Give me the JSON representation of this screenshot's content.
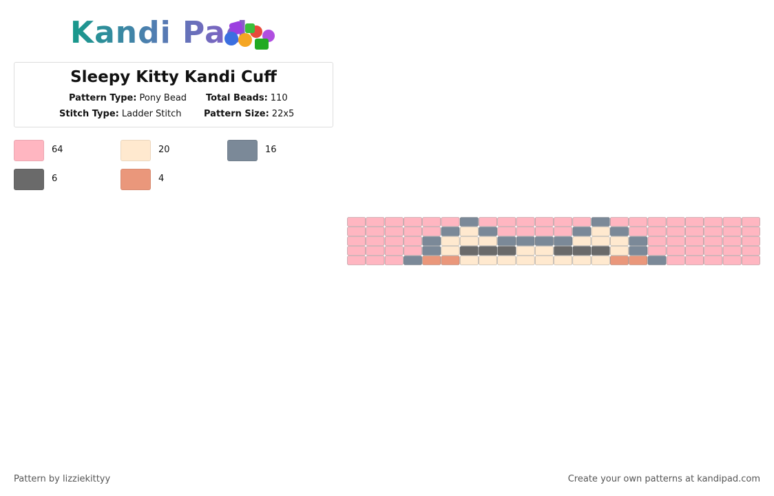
{
  "header": {
    "logo": "Kandi Pad"
  },
  "pattern": {
    "title": "Sleepy Kitty Kandi Cuff",
    "fields": [
      {
        "label": "Pattern Type:",
        "value": "Pony Bead"
      },
      {
        "label": "Total Beads:",
        "value": "110"
      },
      {
        "label": "Stitch Type:",
        "value": "Ladder Stitch"
      },
      {
        "label": "Pattern Size:",
        "value": "22x5"
      }
    ]
  },
  "palette": [
    {
      "color": "#ffb6c1",
      "count": 64
    },
    {
      "color": "#ffe9cf",
      "count": 20
    },
    {
      "color": "#7b8998",
      "count": 16
    },
    {
      "color": "#6a6a6a",
      "count": 6
    },
    {
      "color": "#ea977b",
      "count": 4
    }
  ],
  "grid": [
    [
      0,
      0,
      0,
      0,
      0,
      0,
      2,
      0,
      0,
      0,
      0,
      0,
      0,
      2,
      0,
      0,
      0,
      0,
      0,
      0,
      0,
      0
    ],
    [
      0,
      0,
      0,
      0,
      0,
      2,
      1,
      2,
      0,
      0,
      0,
      0,
      2,
      1,
      2,
      0,
      0,
      0,
      0,
      0,
      0,
      0
    ],
    [
      0,
      0,
      0,
      0,
      2,
      1,
      1,
      1,
      2,
      2,
      2,
      2,
      1,
      1,
      1,
      2,
      0,
      0,
      0,
      0,
      0,
      0
    ],
    [
      0,
      0,
      0,
      0,
      2,
      1,
      3,
      3,
      3,
      1,
      1,
      3,
      3,
      3,
      1,
      2,
      0,
      0,
      0,
      0,
      0,
      0
    ],
    [
      0,
      0,
      0,
      2,
      4,
      4,
      1,
      1,
      1,
      1,
      1,
      1,
      1,
      1,
      4,
      4,
      2,
      0,
      0,
      0,
      0,
      0
    ]
  ],
  "footer": {
    "left": "Pattern by lizziekittyy",
    "right": "Create your own patterns at kandipad.com"
  }
}
